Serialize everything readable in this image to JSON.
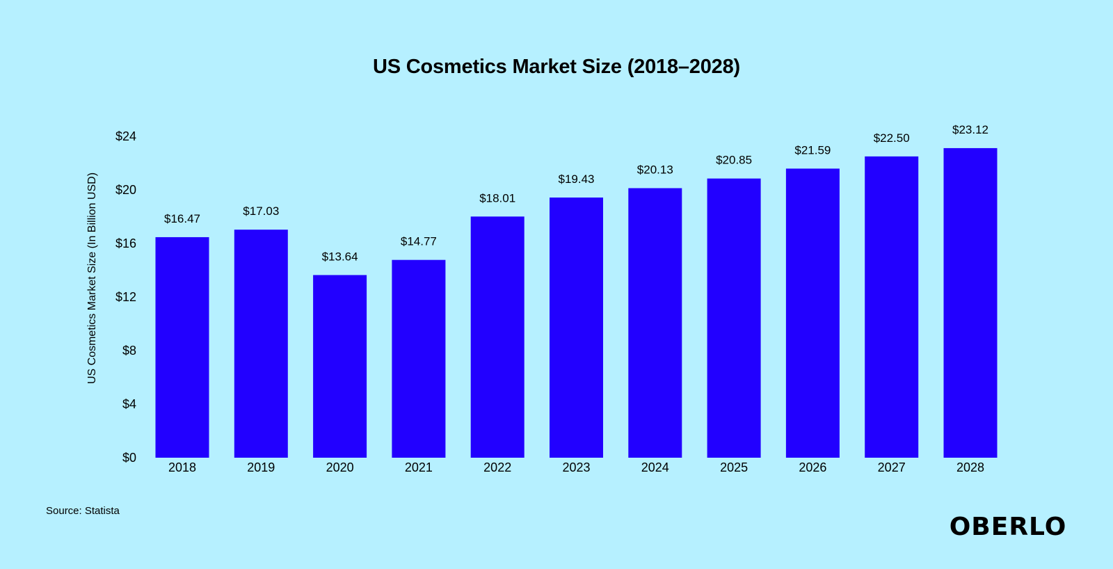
{
  "chart_data": {
    "type": "bar",
    "title": "US Cosmetics Market Size (2018–2028)",
    "xlabel": "",
    "ylabel": "US Cosmetics Market Size (In Billion USD)",
    "categories": [
      "2018",
      "2019",
      "2020",
      "2021",
      "2022",
      "2023",
      "2024",
      "2025",
      "2026",
      "2027",
      "2028"
    ],
    "values": [
      16.47,
      17.03,
      13.64,
      14.77,
      18.01,
      19.43,
      20.13,
      20.85,
      21.59,
      22.5,
      23.12
    ],
    "value_labels": [
      "$16.47",
      "$17.03",
      "$13.64",
      "$14.77",
      "$18.01",
      "$19.43",
      "$20.13",
      "$20.85",
      "$21.59",
      "$22.50",
      "$23.12"
    ],
    "ylim": [
      0,
      24
    ],
    "yticks": [
      0,
      4,
      8,
      12,
      16,
      20,
      24
    ],
    "ytick_labels": [
      "$0",
      "$4",
      "$8",
      "$12",
      "$16",
      "$20",
      "$24"
    ],
    "grid": false,
    "bar_color": "#2200ff"
  },
  "source": "Source: Statista",
  "brand": "OBERLO",
  "colors": {
    "background": "#b6f0ff",
    "bar": "#2200ff",
    "text": "#000000"
  }
}
